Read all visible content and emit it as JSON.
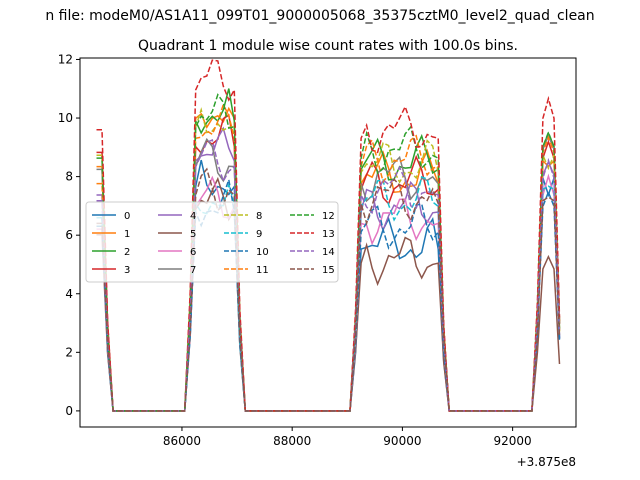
{
  "chart_data": {
    "type": "line",
    "suptitle": "n file: modeM0/AS1A11_099T01_9000005068_35375cztM0_level2_quad_clean",
    "title": "Quadrant 1 module wise count rates with 100.0s bins.",
    "xlabel": "",
    "ylabel": "",
    "offset_label": "+3.875e8",
    "offset": 387500000,
    "xlim": [
      84150,
      93150
    ],
    "ylim": [
      -0.55,
      12.05
    ],
    "xticks": [
      86000,
      88000,
      90000,
      92000
    ],
    "yticks": [
      0,
      2,
      4,
      6,
      8,
      10,
      12
    ],
    "grid": false,
    "legend_position": "center-left",
    "legend_columns": 4,
    "segments": [
      {
        "start": 84450,
        "end": 84550
      },
      {
        "start": 86250,
        "end": 86950
      },
      {
        "start": 89250,
        "end": 90650
      },
      {
        "start": 92550,
        "end": 92750
      }
    ],
    "series": [
      {
        "name": "0",
        "color": "#1f77b4",
        "dash": "solid",
        "seg_levels": [
          6.8,
          7.9,
          5.7,
          8.2
        ],
        "phase": 0.3
      },
      {
        "name": "1",
        "color": "#ff7f0e",
        "dash": "solid",
        "seg_levels": [
          8.6,
          10.3,
          8.0,
          8.8
        ],
        "phase": 1.1
      },
      {
        "name": "2",
        "color": "#2ca02c",
        "dash": "solid",
        "seg_levels": [
          9.0,
          10.2,
          8.5,
          9.3
        ],
        "phase": 2.0
      },
      {
        "name": "3",
        "color": "#d62728",
        "dash": "solid",
        "seg_levels": [
          9.1,
          9.3,
          7.8,
          8.9
        ],
        "phase": 2.7
      },
      {
        "name": "4",
        "color": "#9467bd",
        "dash": "solid",
        "seg_levels": [
          7.6,
          8.8,
          7.0,
          8.3
        ],
        "phase": 3.4
      },
      {
        "name": "5",
        "color": "#8c564b",
        "dash": "solid",
        "seg_levels": [
          6.2,
          7.1,
          5.2,
          5.0
        ],
        "phase": 4.2
      },
      {
        "name": "6",
        "color": "#e377c2",
        "dash": "solid",
        "seg_levels": [
          6.4,
          7.2,
          6.6,
          7.6
        ],
        "phase": 5.0
      },
      {
        "name": "7",
        "color": "#7f7f7f",
        "dash": "solid",
        "seg_levels": [
          8.5,
          8.6,
          8.0,
          9.2
        ],
        "phase": 5.7
      },
      {
        "name": "8",
        "color": "#bcbd22",
        "dash": "dashed",
        "seg_levels": [
          9.0,
          10.0,
          8.4,
          9.0
        ],
        "phase": 0.7
      },
      {
        "name": "9",
        "color": "#17becf",
        "dash": "dashed",
        "seg_levels": [
          6.8,
          7.3,
          7.2,
          7.8
        ],
        "phase": 1.5
      },
      {
        "name": "10",
        "color": "#1f77b4",
        "dash": "dashed",
        "seg_levels": [
          6.5,
          7.0,
          6.3,
          7.2
        ],
        "phase": 2.3
      },
      {
        "name": "11",
        "color": "#ff7f0e",
        "dash": "dashed",
        "seg_levels": [
          8.0,
          9.6,
          8.6,
          9.1
        ],
        "phase": 3.1
      },
      {
        "name": "12",
        "color": "#2ca02c",
        "dash": "dashed",
        "seg_levels": [
          8.9,
          10.0,
          8.9,
          9.3
        ],
        "phase": 3.9
      },
      {
        "name": "13",
        "color": "#d62728",
        "dash": "dashed",
        "seg_levels": [
          9.9,
          11.3,
          9.6,
          10.3
        ],
        "phase": 4.6
      },
      {
        "name": "14",
        "color": "#9467bd",
        "dash": "dashed",
        "seg_levels": [
          7.4,
          8.6,
          7.6,
          8.2
        ],
        "phase": 5.4
      },
      {
        "name": "15",
        "color": "#8c564b",
        "dash": "dashed",
        "seg_levels": [
          6.6,
          7.6,
          7.3,
          7.4
        ],
        "phase": 6.1
      }
    ],
    "x_start": 84450,
    "x_end": 92850,
    "x_step": 100
  }
}
